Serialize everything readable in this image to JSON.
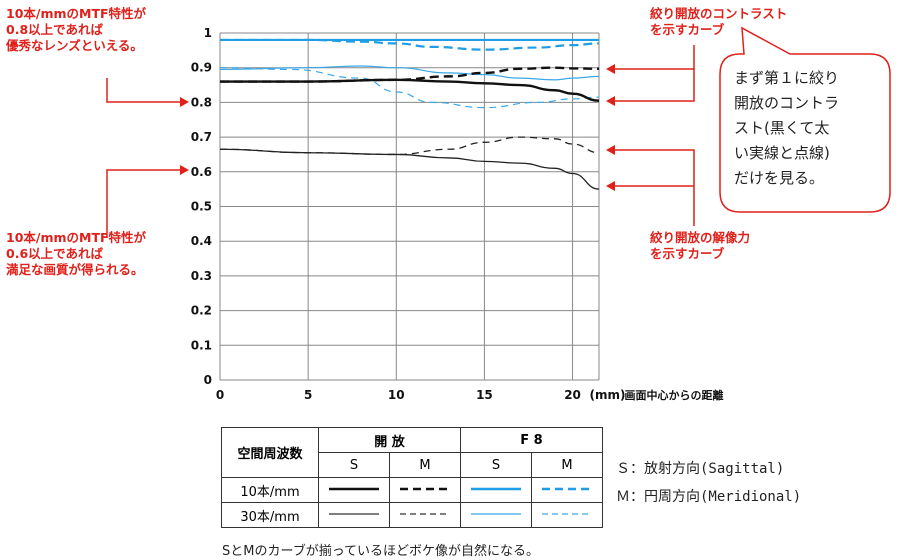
{
  "chart_data": {
    "type": "line",
    "x_axis": {
      "range": [
        0,
        21.5
      ],
      "ticks": [
        0,
        5,
        10,
        15,
        20
      ],
      "unit_label": "(mm)",
      "label": "画面中心からの距離"
    },
    "y_axis": {
      "range": [
        0,
        1
      ],
      "ticks": [
        0,
        0.1,
        0.2,
        0.3,
        0.4,
        0.5,
        0.6,
        0.7,
        0.8,
        0.9,
        1
      ],
      "tick_labels": [
        "0",
        "0.1",
        "0.2",
        "0.3",
        "0.4",
        "0.5",
        "0.6",
        "0.7",
        "0.8",
        "0.9",
        "1"
      ]
    },
    "grid": true,
    "series": [
      {
        "aperture": "F8",
        "freq": "10本/mm",
        "direction": "S",
        "color": "#1e9ee6",
        "width": 2.2,
        "dash": "",
        "points": [
          [
            0,
            0.98
          ],
          [
            5,
            0.98
          ],
          [
            10,
            0.98
          ],
          [
            15,
            0.98
          ],
          [
            20,
            0.98
          ],
          [
            21.5,
            0.98
          ]
        ]
      },
      {
        "aperture": "F8",
        "freq": "10本/mm",
        "direction": "M",
        "color": "#1e9ee6",
        "width": 2.2,
        "dash": "9,5",
        "points": [
          [
            0,
            0.98
          ],
          [
            5,
            0.98
          ],
          [
            8,
            0.975
          ],
          [
            10,
            0.97
          ],
          [
            12,
            0.96
          ],
          [
            15,
            0.952
          ],
          [
            18,
            0.958
          ],
          [
            20,
            0.965
          ],
          [
            21.5,
            0.97
          ]
        ]
      },
      {
        "aperture": "F8",
        "freq": "30本/mm",
        "direction": "S",
        "color": "#3aa8e8",
        "width": 1.2,
        "dash": "",
        "points": [
          [
            0,
            0.895
          ],
          [
            5,
            0.9
          ],
          [
            8,
            0.905
          ],
          [
            10,
            0.9
          ],
          [
            13,
            0.885
          ],
          [
            15,
            0.88
          ],
          [
            17,
            0.87
          ],
          [
            19,
            0.865
          ],
          [
            20,
            0.87
          ],
          [
            21.5,
            0.875
          ]
        ]
      },
      {
        "aperture": "F8",
        "freq": "30本/mm",
        "direction": "M",
        "color": "#3aa8e8",
        "width": 1.2,
        "dash": "7,5",
        "points": [
          [
            0,
            0.9
          ],
          [
            4,
            0.895
          ],
          [
            8,
            0.87
          ],
          [
            10,
            0.83
          ],
          [
            12,
            0.8
          ],
          [
            15,
            0.785
          ],
          [
            18,
            0.8
          ],
          [
            20,
            0.81
          ],
          [
            21.5,
            0.815
          ]
        ]
      },
      {
        "aperture": "開放",
        "freq": "10本/mm",
        "direction": "S",
        "color": "#111111",
        "width": 2.4,
        "dash": "",
        "points": [
          [
            0,
            0.86
          ],
          [
            5,
            0.86
          ],
          [
            10,
            0.865
          ],
          [
            13,
            0.86
          ],
          [
            15,
            0.855
          ],
          [
            17,
            0.85
          ],
          [
            19,
            0.835
          ],
          [
            20,
            0.825
          ],
          [
            21.5,
            0.805
          ]
        ]
      },
      {
        "aperture": "開放",
        "freq": "10本/mm",
        "direction": "M",
        "color": "#111111",
        "width": 2.4,
        "dash": "9,5",
        "points": [
          [
            0,
            0.86
          ],
          [
            5,
            0.86
          ],
          [
            10,
            0.865
          ],
          [
            13,
            0.875
          ],
          [
            15,
            0.885
          ],
          [
            17,
            0.897
          ],
          [
            19,
            0.9
          ],
          [
            20,
            0.898
          ],
          [
            21.5,
            0.897
          ]
        ]
      },
      {
        "aperture": "開放",
        "freq": "30本/mm",
        "direction": "S",
        "color": "#222222",
        "width": 1.3,
        "dash": "",
        "points": [
          [
            0,
            0.665
          ],
          [
            5,
            0.655
          ],
          [
            10,
            0.65
          ],
          [
            13,
            0.64
          ],
          [
            15,
            0.63
          ],
          [
            17,
            0.625
          ],
          [
            19,
            0.61
          ],
          [
            20,
            0.595
          ],
          [
            21.5,
            0.55
          ]
        ]
      },
      {
        "aperture": "開放",
        "freq": "30本/mm",
        "direction": "M",
        "color": "#222222",
        "width": 1.3,
        "dash": "7,5",
        "points": [
          [
            0,
            0.665
          ],
          [
            5,
            0.655
          ],
          [
            10,
            0.65
          ],
          [
            13,
            0.665
          ],
          [
            15,
            0.685
          ],
          [
            17,
            0.7
          ],
          [
            19,
            0.695
          ],
          [
            20,
            0.68
          ],
          [
            21.5,
            0.655
          ]
        ]
      }
    ]
  },
  "annotations": {
    "left_top": "10本/mmのMTF特性が\n0.8以上であれば\n優秀なレンズといえる。",
    "left_bottom": "10本/mmのMTF特性が\n0.6以上であれば\n満足な画質が得られる。",
    "right_contrast": "絞り開放のコントラスト\nを示すカーブ",
    "right_resolution": "絞り開放の解像力\nを示すカーブ",
    "bubble": "まず第１に絞り\n開放のコントラ\nスト(黒くて太\nい実線と点線)\nだけを見る。",
    "arrow_color": "#e0201a"
  },
  "legend": {
    "header_freq": "空間周波数",
    "header_open": "開 放",
    "header_f8": "F 8",
    "col_s": "S",
    "col_m": "M",
    "row_10": "10本/mm",
    "row_30": "30本/mm",
    "s_desc": "Ｓ：放射方向(Sagittal)",
    "m_desc": "Ｍ：円周方向(Meridional)",
    "footer": "SとMのカーブが揃っているほどボケ像が自然になる。"
  }
}
